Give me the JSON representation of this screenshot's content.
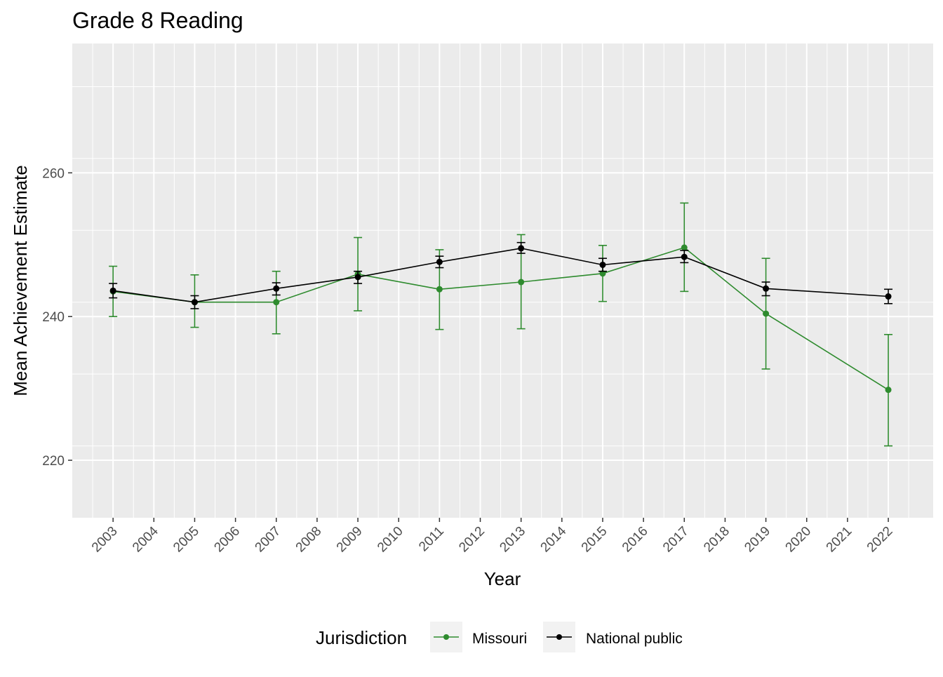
{
  "chart_data": {
    "type": "line",
    "title": "Grade 8 Reading",
    "xlabel": "Year",
    "ylabel": "Mean Achievement Estimate",
    "x_ticks": [
      2003,
      2004,
      2005,
      2006,
      2007,
      2008,
      2009,
      2010,
      2011,
      2012,
      2013,
      2014,
      2015,
      2016,
      2017,
      2018,
      2019,
      2020,
      2021,
      2022
    ],
    "xlim": [
      2002,
      2023.1
    ],
    "ylim": [
      212,
      278
    ],
    "y_ticks": [
      220,
      240,
      260
    ],
    "grid": true,
    "legend": {
      "title": "Jurisdiction",
      "position": "bottom"
    },
    "series": [
      {
        "name": "Missouri",
        "color": "#2e8b2e",
        "points": [
          {
            "x": 2003,
            "y": 243.5,
            "lo": 240.0,
            "hi": 247.0
          },
          {
            "x": 2005,
            "y": 242.0,
            "lo": 238.5,
            "hi": 245.8
          },
          {
            "x": 2007,
            "y": 242.0,
            "lo": 237.6,
            "hi": 246.3
          },
          {
            "x": 2009,
            "y": 245.9,
            "lo": 240.8,
            "hi": 251.0
          },
          {
            "x": 2011,
            "y": 243.8,
            "lo": 238.2,
            "hi": 249.3
          },
          {
            "x": 2013,
            "y": 244.8,
            "lo": 238.3,
            "hi": 251.4
          },
          {
            "x": 2015,
            "y": 246.0,
            "lo": 242.1,
            "hi": 249.9
          },
          {
            "x": 2017,
            "y": 249.6,
            "lo": 243.5,
            "hi": 255.8
          },
          {
            "x": 2019,
            "y": 240.4,
            "lo": 232.7,
            "hi": 248.1
          },
          {
            "x": 2022,
            "y": 229.8,
            "lo": 222.0,
            "hi": 237.5
          }
        ]
      },
      {
        "name": "National public",
        "color": "#000000",
        "points": [
          {
            "x": 2003,
            "y": 243.6,
            "lo": 242.6,
            "hi": 244.6
          },
          {
            "x": 2005,
            "y": 242.0,
            "lo": 241.1,
            "hi": 242.9
          },
          {
            "x": 2007,
            "y": 243.9,
            "lo": 243.0,
            "hi": 244.7
          },
          {
            "x": 2009,
            "y": 245.5,
            "lo": 244.6,
            "hi": 246.3
          },
          {
            "x": 2011,
            "y": 247.6,
            "lo": 246.8,
            "hi": 248.4
          },
          {
            "x": 2013,
            "y": 249.5,
            "lo": 248.8,
            "hi": 250.3
          },
          {
            "x": 2015,
            "y": 247.2,
            "lo": 246.3,
            "hi": 248.1
          },
          {
            "x": 2017,
            "y": 248.3,
            "lo": 247.5,
            "hi": 249.2
          },
          {
            "x": 2019,
            "y": 243.9,
            "lo": 242.9,
            "hi": 244.8
          },
          {
            "x": 2022,
            "y": 242.8,
            "lo": 241.8,
            "hi": 243.8
          }
        ]
      }
    ]
  }
}
